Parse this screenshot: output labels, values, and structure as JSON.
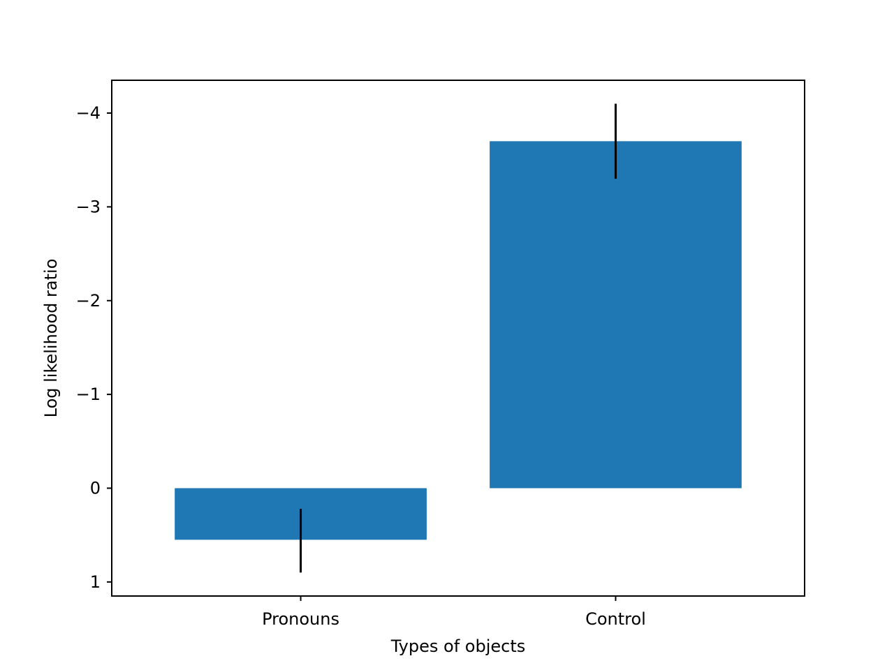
{
  "chart_data": {
    "type": "bar",
    "title": "",
    "xlabel": "Types of objects",
    "ylabel": "Log likelihood ratio",
    "categories": [
      "Pronouns",
      "Control"
    ],
    "values": [
      0.55,
      -3.7
    ],
    "error_low": [
      0.22,
      -4.1
    ],
    "error_high": [
      0.9,
      -3.3
    ],
    "ylim": [
      1.15,
      -4.35
    ],
    "y_inverted": true,
    "yticks": [
      1,
      0,
      -1,
      -2,
      -3,
      -4
    ],
    "ytick_labels": [
      "1",
      "0",
      "−1",
      "−2",
      "−3",
      "−4"
    ],
    "grid": false,
    "legend": "none",
    "bar_color": "#1f77b4",
    "errorbar_color": "#000000"
  }
}
